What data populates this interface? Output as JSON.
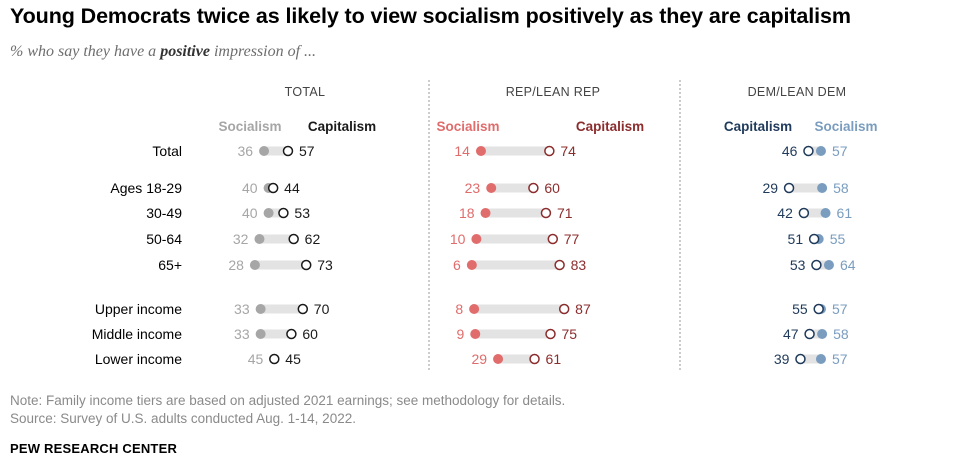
{
  "header": {
    "title": "Young Democrats twice as likely to view socialism positively as they are capitalism",
    "subtitle_pre": "% who say they have a ",
    "subtitle_em": "positive",
    "subtitle_post": " impression of ..."
  },
  "footer": {
    "note": "Note: Family income tiers are based on adjusted 2021 earnings; see methodology for details.",
    "source": "Source: Survey of U.S. adults conducted Aug. 1-14, 2022.",
    "brand": "PEW RESEARCH CENTER"
  },
  "colors": {
    "total_socialism": "#a6a6a6",
    "total_capitalism": "#1a1a1a",
    "rep_socialism": "#e06c6c",
    "rep_capitalism": "#8c2d2d",
    "dem_socialism": "#7a9dbf",
    "dem_capitalism": "#1f3a5a",
    "bar": "#e3e3e3",
    "divider": "#9a9a9a"
  },
  "chart_data": {
    "type": "dot",
    "categories": [
      "Total",
      "Ages 18-29",
      "30-49",
      "50-64",
      "65+",
      "Upper income",
      "Middle income",
      "Lower income"
    ],
    "panels": [
      {
        "key": "total",
        "title": "TOTAL",
        "legend_left": "Socialism",
        "legend_right": "Capitalism",
        "series": [
          {
            "name": "Socialism",
            "marker": "filled",
            "values": [
              36,
              40,
              40,
              32,
              28,
              33,
              33,
              45
            ]
          },
          {
            "name": "Capitalism",
            "marker": "open",
            "values": [
              57,
              44,
              53,
              62,
              73,
              70,
              60,
              45
            ]
          }
        ]
      },
      {
        "key": "rep",
        "title": "REP/LEAN REP",
        "legend_left": "Socialism",
        "legend_right": "Capitalism",
        "series": [
          {
            "name": "Socialism",
            "marker": "filled",
            "values": [
              14,
              23,
              18,
              10,
              6,
              8,
              9,
              29
            ]
          },
          {
            "name": "Capitalism",
            "marker": "open",
            "values": [
              74,
              60,
              71,
              77,
              83,
              87,
              75,
              61
            ]
          }
        ]
      },
      {
        "key": "dem",
        "title": "DEM/LEAN DEM",
        "legend_left": "Capitalism",
        "legend_right": "Socialism",
        "series": [
          {
            "name": "Socialism",
            "marker": "filled",
            "values": [
              57,
              58,
              61,
              55,
              64,
              57,
              58,
              57
            ]
          },
          {
            "name": "Capitalism",
            "marker": "open",
            "values": [
              46,
              29,
              42,
              51,
              53,
              55,
              47,
              39
            ]
          }
        ]
      }
    ]
  }
}
